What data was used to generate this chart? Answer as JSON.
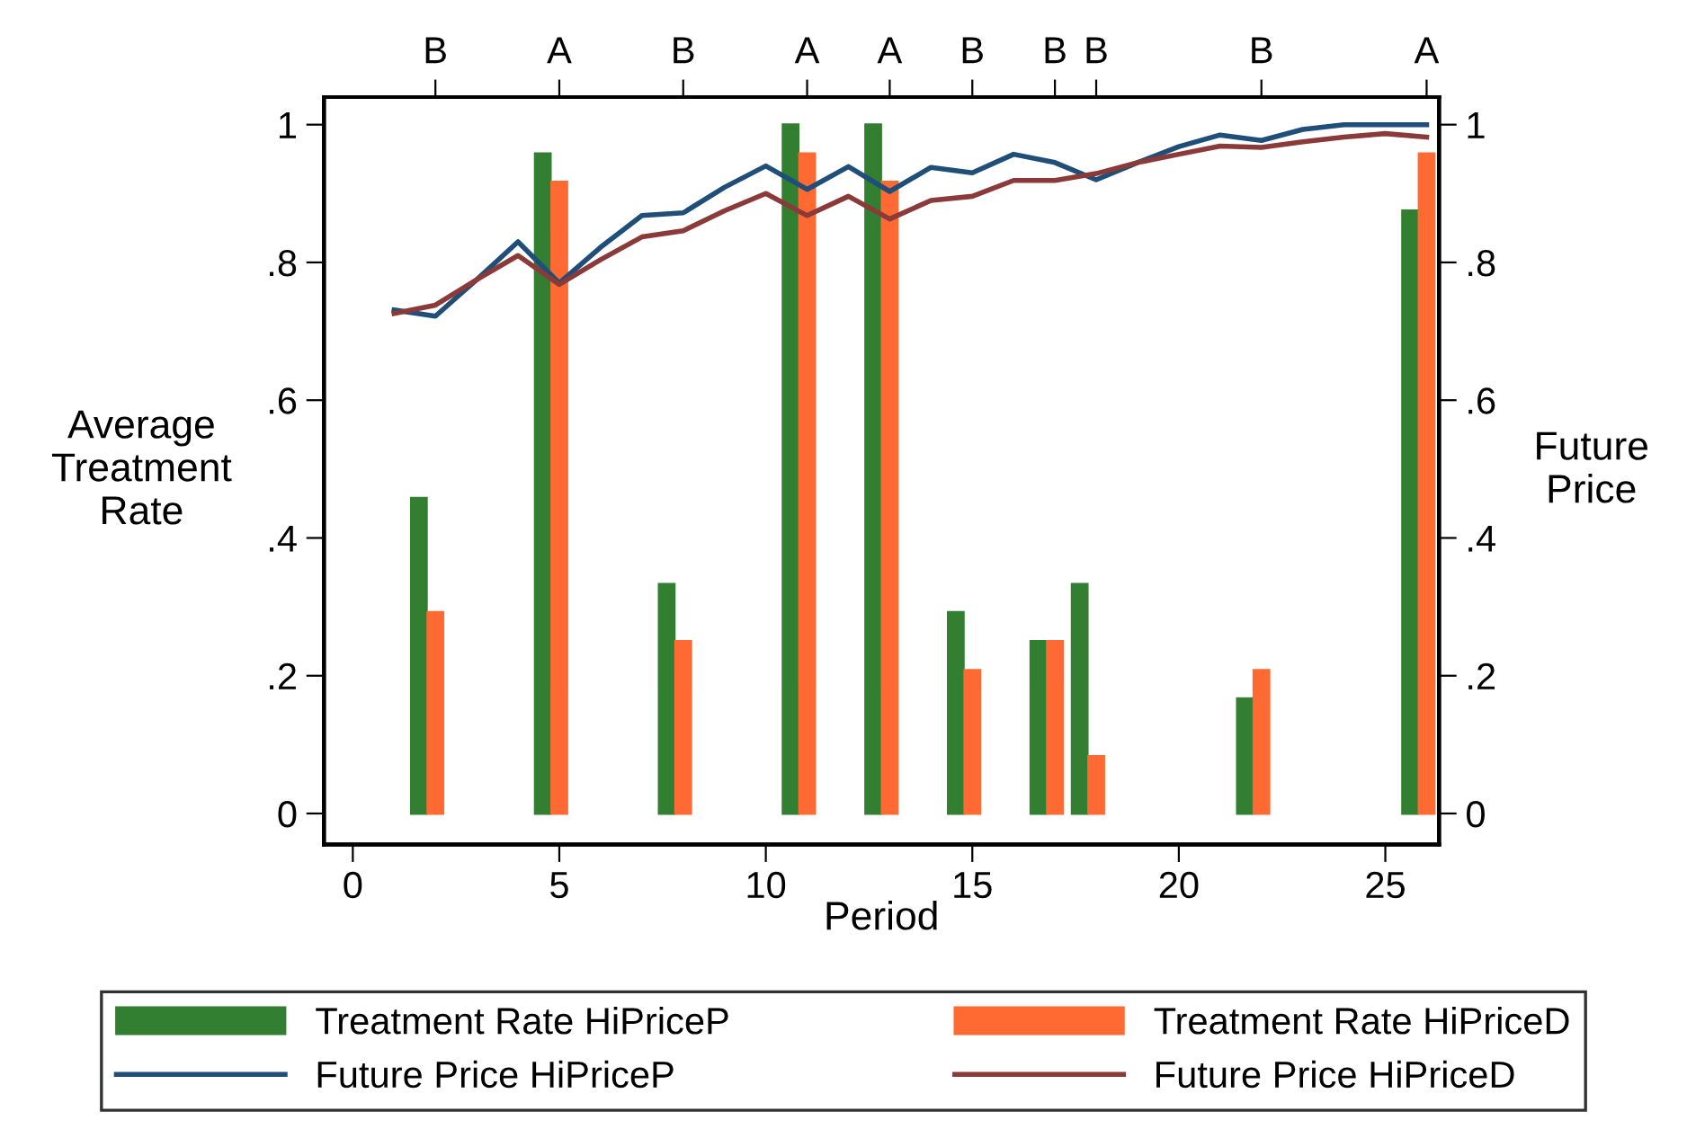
{
  "chart_data": {
    "type": "bar",
    "xlabel": "Period",
    "ylabel": "Average\nTreatment\nRate",
    "y2label": "Future\nPrice",
    "xlim": [
      -0.7,
      26.3
    ],
    "xticks": [
      0,
      5,
      10,
      15,
      20,
      25
    ],
    "annotations": [
      {
        "text": "B",
        "x": 2
      },
      {
        "text": "A",
        "x": 5
      },
      {
        "text": "B",
        "x": 8
      },
      {
        "text": "A",
        "x": 11
      },
      {
        "text": "A",
        "x": 13
      },
      {
        "text": "B",
        "x": 15
      },
      {
        "text": "B",
        "x": 17
      },
      {
        "text": "B",
        "x": 18
      },
      {
        "text": "B",
        "x": 22
      },
      {
        "text": "A",
        "x": 26
      }
    ],
    "ylim": [
      -0.045,
      1.04
    ],
    "yticks": [
      0,
      {
        "value": 0.2,
        "label": ".2"
      },
      {
        "value": 0.4,
        "label": ".4"
      },
      {
        "value": 0.6,
        "label": ".6"
      },
      {
        "value": 0.8,
        "label": ".8"
      },
      1
    ],
    "y2lim": [
      -0.045,
      1.04
    ],
    "y2ticks": [
      0,
      {
        "value": 0.2,
        "label": ".2"
      },
      {
        "value": 0.4,
        "label": ".4"
      },
      {
        "value": 0.6,
        "label": ".6"
      },
      {
        "value": 0.8,
        "label": ".8"
      },
      1
    ],
    "legend": "bottom",
    "grid": false,
    "series": [
      {
        "name": "Treatment Rate HiPriceP",
        "color": "#327f32",
        "x": [
          1.6,
          4.6,
          7.6,
          10.6,
          12.6,
          14.6,
          16.6,
          17.6,
          21.6,
          25.6
        ],
        "values": [
          0.458,
          0.958,
          0.333,
          1,
          1,
          0.292,
          0.25,
          0.333,
          0.167,
          0.875
        ]
      },
      {
        "name": "Treatment Rate HiPriceD",
        "color": "#ff6a33",
        "x": [
          2,
          5,
          8,
          11,
          13,
          15,
          17,
          18,
          22,
          26
        ],
        "values": [
          0.292,
          0.917,
          0.25,
          0.958,
          0.917,
          0.208,
          0.25,
          0.083,
          0.208,
          0.958
        ]
      },
      {
        "name": "Future Price HiPriceP",
        "type": "line",
        "color": "#1f4e79",
        "x": [
          1,
          2,
          3,
          4,
          5,
          6,
          7,
          8,
          9,
          10,
          11,
          12,
          13,
          14,
          15,
          16,
          17,
          18,
          19,
          20,
          21,
          22,
          23,
          24,
          25,
          26
        ],
        "values": [
          0.731,
          0.722,
          0.775,
          0.83,
          0.77,
          0.822,
          0.868,
          0.872,
          0.909,
          0.94,
          0.906,
          0.939,
          0.903,
          0.938,
          0.93,
          0.957,
          0.945,
          0.92,
          0.945,
          0.968,
          0.985,
          0.977,
          0.993,
          1,
          1,
          1
        ]
      },
      {
        "name": "Future Price HiPriceD",
        "type": "line",
        "color": "#8b3a3a",
        "x": [
          1,
          2,
          3,
          4,
          5,
          6,
          7,
          8,
          9,
          10,
          11,
          12,
          13,
          14,
          15,
          16,
          17,
          18,
          19,
          20,
          21,
          22,
          23,
          24,
          25,
          26
        ],
        "values": [
          0.726,
          0.738,
          0.775,
          0.81,
          0.768,
          0.804,
          0.837,
          0.846,
          0.875,
          0.9,
          0.868,
          0.896,
          0.863,
          0.89,
          0.896,
          0.919,
          0.919,
          0.929,
          0.945,
          0.957,
          0.969,
          0.967,
          0.975,
          0.982,
          0.987,
          0.982
        ]
      }
    ]
  }
}
